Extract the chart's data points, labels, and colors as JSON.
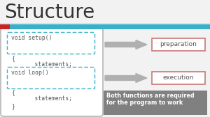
{
  "title": "Structure",
  "title_fontsize": 20,
  "title_color": "#333333",
  "slide_bg": "#f2f2f2",
  "top_bar_color": "#3ab0c8",
  "top_bar_thin_color": "#c8e8f0",
  "red_accent_color": "#cc2222",
  "outer_box_color": "#aaaaaa",
  "dashed_box_color": "#3ab0c8",
  "arrow_color": "#b0b0b0",
  "label_box_border": "#cc7777",
  "note_bg": "#808080",
  "note_text_color": "#ffffff",
  "note_line1": "Both functions are required",
  "note_line2": "for the program to work",
  "setup_lines": [
    "void setup()",
    "{",
    "    statements;",
    "}"
  ],
  "loop_lines": [
    "void loop()",
    "{",
    "    statements;",
    "}"
  ],
  "label1": "preparation",
  "label2": "execution"
}
